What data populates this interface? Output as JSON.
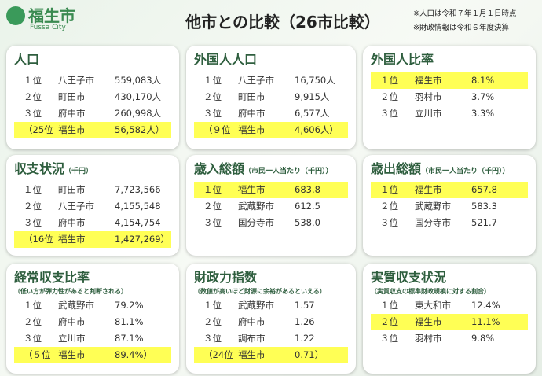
{
  "header": {
    "logo": "福生市",
    "logo_sub": "Fussa City",
    "title": "他市との比較（26市比較）",
    "notes": [
      "※人口は令和７年１月１日時点",
      "※財政情報は令和６年度決算"
    ]
  },
  "panels": [
    {
      "title": "人口",
      "rows": [
        [
          "１位",
          "八王子市",
          "559,083人"
        ],
        [
          "２位",
          "町田市",
          "430,170人"
        ],
        [
          "３位",
          "府中市",
          "260,998人"
        ],
        [
          "（25位",
          "福生市",
          "56,582人）"
        ]
      ],
      "highlight": [
        false,
        false,
        false,
        true
      ]
    },
    {
      "title": "外国人人口",
      "rows": [
        [
          "１位",
          "八王子市",
          "16,750人"
        ],
        [
          "２位",
          "町田市",
          "9,915人"
        ],
        [
          "３位",
          "府中市",
          "6,577人"
        ],
        [
          "（９位",
          "福生市",
          "4,606人）"
        ]
      ],
      "highlight": [
        false,
        false,
        false,
        true
      ]
    },
    {
      "title": "外国人比率",
      "rows": [
        [
          "１位",
          "福生市",
          "8.1%"
        ],
        [
          "２位",
          "羽村市",
          "3.7%"
        ],
        [
          "３位",
          "立川市",
          "3.3%"
        ]
      ],
      "highlight": [
        true,
        false,
        false
      ]
    },
    {
      "title": "収支状況",
      "subtitle": "（千円）",
      "rows": [
        [
          "１位",
          "町田市",
          "7,723,566"
        ],
        [
          "２位",
          "八王子市",
          "4,155,548"
        ],
        [
          "３位",
          "府中市",
          "4,154,754"
        ],
        [
          "（16位",
          "福生市",
          "1,427,269）"
        ]
      ],
      "highlight": [
        false,
        false,
        false,
        true
      ]
    },
    {
      "title": "歳入総額",
      "subtitle": "（市民一人当たり（千円））",
      "rows": [
        [
          "１位",
          "福生市",
          "683.8"
        ],
        [
          "２位",
          "武蔵野市",
          "612.5"
        ],
        [
          "３位",
          "国分寺市",
          "538.0"
        ]
      ],
      "highlight": [
        true,
        false,
        false
      ]
    },
    {
      "title": "歳出総額",
      "subtitle": "（市民一人当たり（千円））",
      "rows": [
        [
          "１位",
          "福生市",
          "657.8"
        ],
        [
          "２位",
          "武蔵野市",
          "583.3"
        ],
        [
          "３位",
          "国分寺市",
          "521.7"
        ]
      ],
      "highlight": [
        true,
        false,
        false
      ]
    },
    {
      "title": "経常収支比率",
      "subtitle": "（低い方が弾力性があると判断される）",
      "rows": [
        [
          "１位",
          "武蔵野市",
          "79.2%"
        ],
        [
          "２位",
          "府中市",
          "81.1%"
        ],
        [
          "３位",
          "立川市",
          "87.1%"
        ],
        [
          "（５位",
          "福生市",
          "89.4%）"
        ]
      ],
      "highlight": [
        false,
        false,
        false,
        true
      ]
    },
    {
      "title": "財政力指数",
      "subtitle": "（数値が高いほど財源に余裕があるといえる）",
      "rows": [
        [
          "１位",
          "武蔵野市",
          "1.57"
        ],
        [
          "２位",
          "府中市",
          "1.26"
        ],
        [
          "３位",
          "調布市",
          "1.22"
        ],
        [
          "（24位",
          "福生市",
          "0.71）"
        ]
      ],
      "highlight": [
        false,
        false,
        false,
        true
      ]
    },
    {
      "title": "実質収支状況",
      "subtitle": "（実質収支の標準財政規模に対する割合）",
      "rows": [
        [
          "１位",
          "東大和市",
          "12.4%"
        ],
        [
          "２位",
          "福生市",
          "11.1%"
        ],
        [
          "３位",
          "羽村市",
          "9.8%"
        ]
      ],
      "highlight": [
        false,
        true,
        false
      ]
    }
  ]
}
